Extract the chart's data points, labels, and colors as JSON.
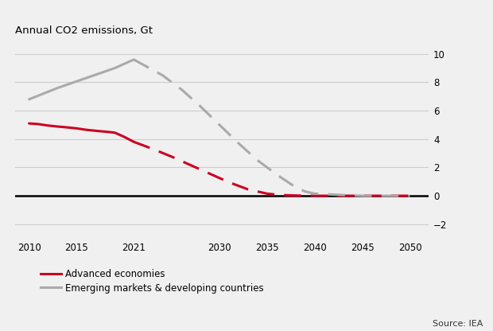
{
  "title": "Annual CO2 emissions, Gt",
  "source_text": "Source: IEA",
  "ylim": [
    -3,
    11
  ],
  "yticks": [
    -2,
    0,
    2,
    4,
    6,
    8,
    10
  ],
  "xlim": [
    2008.5,
    2052
  ],
  "xticks": [
    2010,
    2015,
    2021,
    2030,
    2035,
    2040,
    2045,
    2050
  ],
  "advanced_solid_x": [
    2010,
    2011,
    2012,
    2013,
    2014,
    2015,
    2016,
    2017,
    2018,
    2019,
    2020,
    2021
  ],
  "advanced_solid_y": [
    5.1,
    5.05,
    4.95,
    4.88,
    4.82,
    4.75,
    4.65,
    4.58,
    4.52,
    4.45,
    4.15,
    3.8
  ],
  "advanced_dashed_x": [
    2021,
    2023,
    2025,
    2027,
    2029,
    2031,
    2033,
    2035,
    2036,
    2037,
    2038,
    2040,
    2045,
    2050
  ],
  "advanced_dashed_y": [
    3.8,
    3.3,
    2.75,
    2.15,
    1.55,
    0.95,
    0.45,
    0.15,
    0.08,
    0.04,
    0.02,
    0.0,
    0.0,
    0.0
  ],
  "emerging_solid_x": [
    2010,
    2013,
    2016,
    2019,
    2021
  ],
  "emerging_solid_y": [
    6.8,
    7.6,
    8.3,
    9.0,
    9.6
  ],
  "emerging_dashed_x": [
    2021,
    2024,
    2026,
    2028,
    2030,
    2032,
    2034,
    2036,
    2038,
    2039,
    2040,
    2043,
    2045,
    2050
  ],
  "emerging_dashed_y": [
    9.6,
    8.5,
    7.5,
    6.3,
    5.0,
    3.7,
    2.5,
    1.5,
    0.6,
    0.3,
    0.15,
    0.05,
    0.0,
    0.0
  ],
  "zero_line_x": [
    2008.5,
    2052
  ],
  "zero_line_y": [
    0,
    0
  ],
  "advanced_color": "#cc0022",
  "emerging_color": "#aaaaaa",
  "zero_line_color": "#000000",
  "grid_color": "#cccccc",
  "background_color": "#f0f0f0",
  "legend_advanced": "Advanced economies",
  "legend_emerging": "Emerging markets & developing countries"
}
